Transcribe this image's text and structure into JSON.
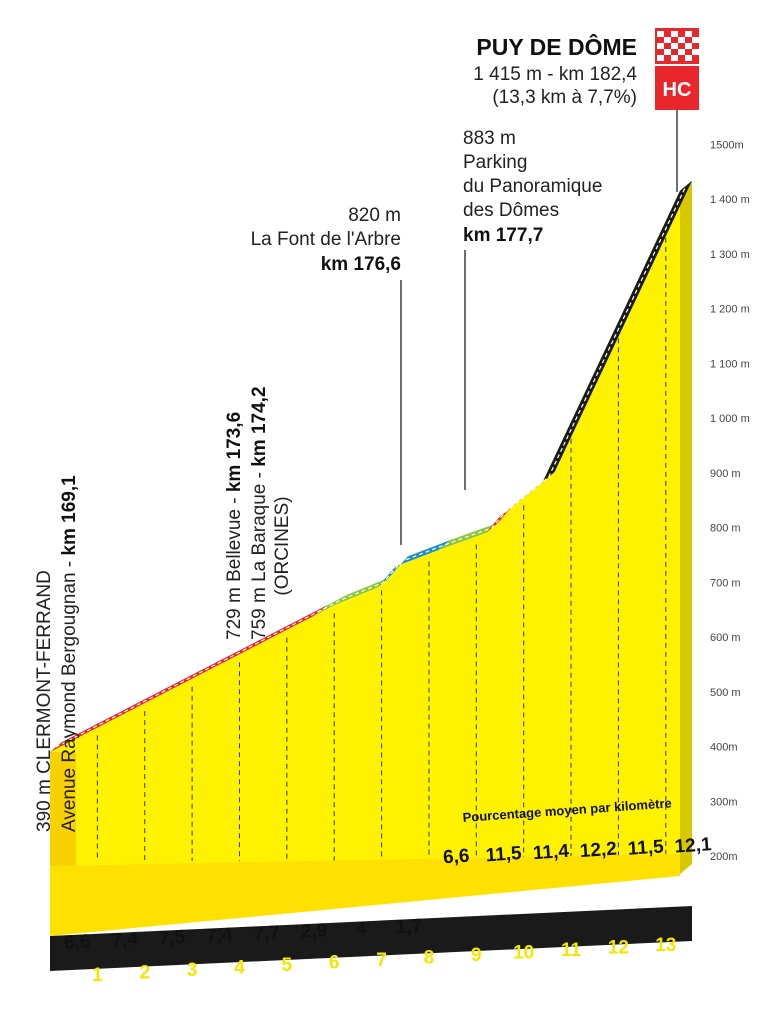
{
  "chart_data": {
    "type": "area",
    "title": "PUY DE DÔME",
    "subtitle": "1 415 m - km 182,4",
    "subtitle2": "(13,3 km à 7,7%)",
    "category": "HC",
    "y_unit": "m",
    "ylim": [
      200,
      1500
    ],
    "y_ticks": [
      "200m",
      "300m",
      "400m",
      "500 m",
      "600 m",
      "700 m",
      "800 m",
      "900 m",
      "1 000 m",
      "1 100 m",
      "1 200 m",
      "1 300 m",
      "1 400 m",
      "1500m"
    ],
    "x_ticks": [
      "1",
      "2",
      "3",
      "4",
      "5",
      "6",
      "7",
      "8",
      "9",
      "10",
      "11",
      "12",
      "13"
    ],
    "profile": [
      {
        "x": 0,
        "elevation": 390
      },
      {
        "x": 5.6,
        "elevation": 640
      },
      {
        "x": 6,
        "elevation": 658
      },
      {
        "x": 6.9,
        "elevation": 690
      },
      {
        "x": 7.3,
        "elevation": 729
      },
      {
        "x": 8.2,
        "elevation": 759
      },
      {
        "x": 9.2,
        "elevation": 790
      },
      {
        "x": 9.5,
        "elevation": 820
      },
      {
        "x": 10.4,
        "elevation": 883
      },
      {
        "x": 13.3,
        "elevation": 1415
      }
    ],
    "gradient_segments": [
      {
        "from": 0,
        "to": 5.6,
        "color": "#e8262c"
      },
      {
        "from": 5.6,
        "to": 6.9,
        "color": "#8cc63f"
      },
      {
        "from": 6.9,
        "to": 8.2,
        "color": "#1d8fce"
      },
      {
        "from": 8.2,
        "to": 9.2,
        "color": "#8cc63f"
      },
      {
        "from": 9.2,
        "to": 10.4,
        "color": "#e8262c"
      },
      {
        "from": 10.4,
        "to": 13.3,
        "color": "#1a1a1a"
      }
    ],
    "km_gradients": [
      "6,6",
      "7,4",
      "7,5",
      "7,4",
      "7,7",
      "2,9",
      "4",
      "1,7",
      "6,6",
      "11,5",
      "11,4",
      "12,2",
      "11,5",
      "12,1"
    ],
    "legend_note": "Pourcentage moyen par kilomètre",
    "annotations": {
      "start": {
        "line1": "390 m CLERMONT-FERRAND",
        "line2": "Avenue Raymond Bergougnan - ",
        "line2_bold": "km 169,1"
      },
      "bellevue": {
        "line1": "729 m Bellevue - ",
        "line1_bold": "km 173,6",
        "line2": "759 m La Baraque - ",
        "line2_bold": "km 174,2",
        "line3": "(ORCINES)"
      },
      "font_arbre": {
        "line1": "820 m",
        "line2": "La Font de l'Arbre",
        "line3": "km 176,6"
      },
      "parking": {
        "line1": "883 m",
        "line2": "Parking",
        "line3": "du Panoramique",
        "line4": "des Dômes",
        "line5": "km 177,7"
      }
    }
  }
}
